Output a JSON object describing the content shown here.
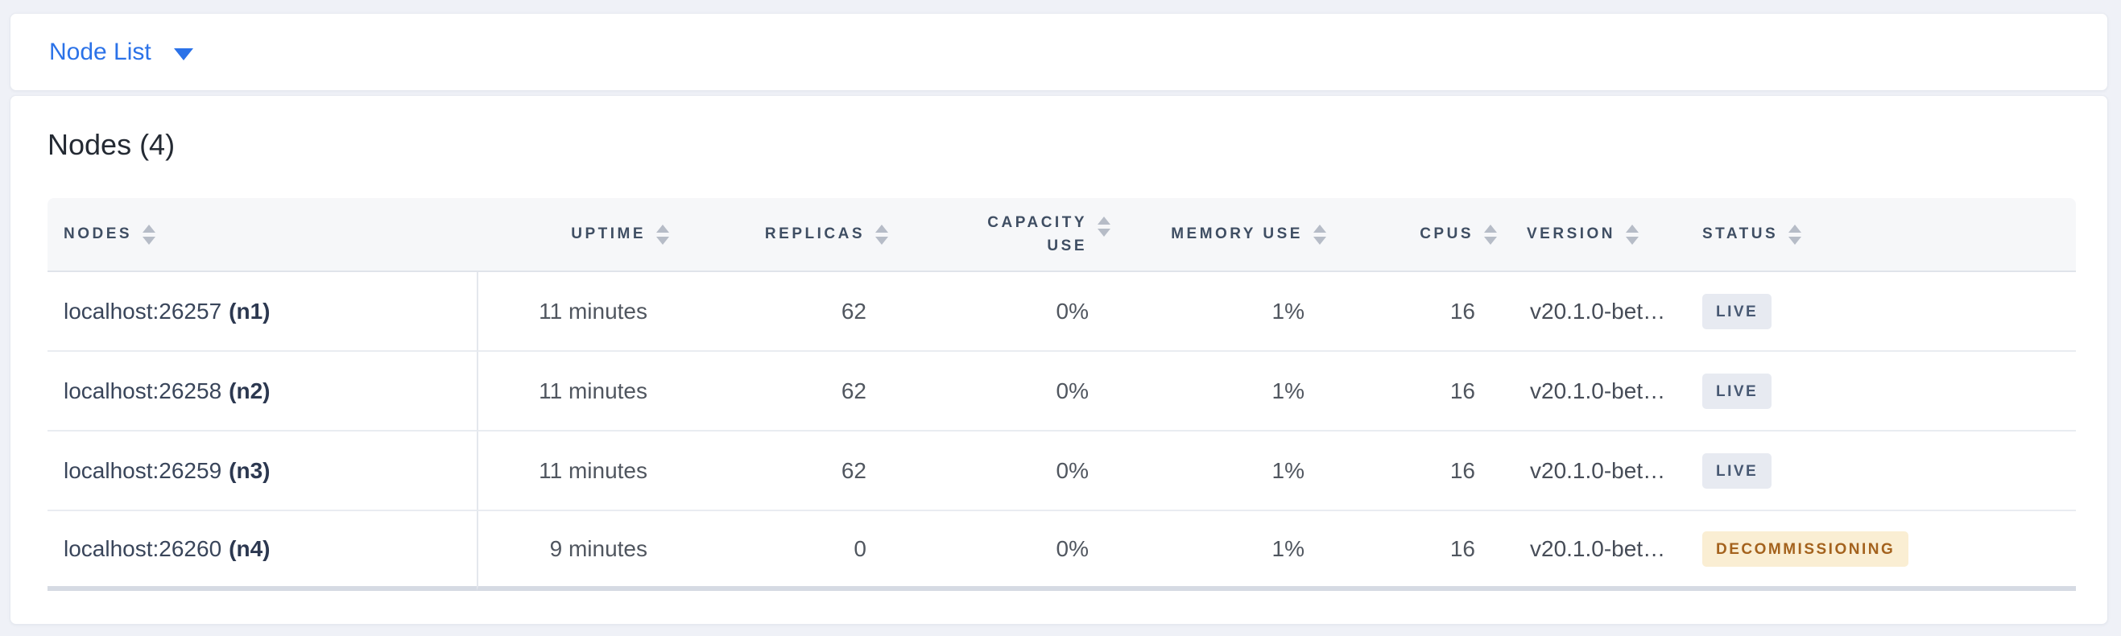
{
  "colors": {
    "accent": "#2B72E8",
    "live_bg": "#E7EAF1",
    "live_text": "#475872",
    "decommissioning_bg": "#FAEED3",
    "decommissioning_text": "#A4621D"
  },
  "toolbar": {
    "dropdown_label": "Node List"
  },
  "main": {
    "title": "Nodes (4)",
    "table": {
      "columns": [
        {
          "label": "NODES"
        },
        {
          "label": "UPTIME"
        },
        {
          "label": "REPLICAS"
        },
        {
          "label": "CAPACITY USE"
        },
        {
          "label": "MEMORY USE"
        },
        {
          "label": "CPUS"
        },
        {
          "label": "VERSION"
        },
        {
          "label": "STATUS"
        }
      ],
      "rows": [
        {
          "node": "localhost:26257",
          "node_id": "(n1)",
          "uptime": "11 minutes",
          "replicas": "62",
          "capacity_use": "0%",
          "memory_use": "1%",
          "cpus": "16",
          "version": "v20.1.0-bet…",
          "status": "LIVE",
          "status_type": "live"
        },
        {
          "node": "localhost:26258",
          "node_id": "(n2)",
          "uptime": "11 minutes",
          "replicas": "62",
          "capacity_use": "0%",
          "memory_use": "1%",
          "cpus": "16",
          "version": "v20.1.0-bet…",
          "status": "LIVE",
          "status_type": "live"
        },
        {
          "node": "localhost:26259",
          "node_id": "(n3)",
          "uptime": "11 minutes",
          "replicas": "62",
          "capacity_use": "0%",
          "memory_use": "1%",
          "cpus": "16",
          "version": "v20.1.0-bet…",
          "status": "LIVE",
          "status_type": "live"
        },
        {
          "node": "localhost:26260",
          "node_id": "(n4)",
          "uptime": "9 minutes",
          "replicas": "0",
          "capacity_use": "0%",
          "memory_use": "1%",
          "cpus": "16",
          "version": "v20.1.0-bet…",
          "status": "DECOMMISSIONING",
          "status_type": "decommissioning"
        }
      ]
    }
  }
}
